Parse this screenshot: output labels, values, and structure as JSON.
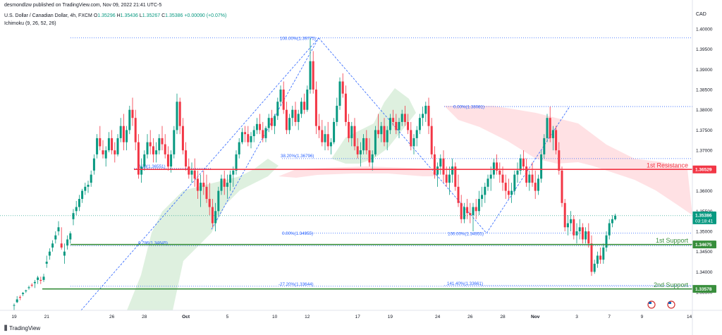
{
  "header": {
    "published": "desmondlzw published on TradingView.com, Nov 09, 2022 21:41 UTC-5",
    "symbol": "U.S. Dollar / Canadian Dollar, 4h, FXCM",
    "ohlc_o_label": "O",
    "ohlc_o": "1.35296",
    "ohlc_h_label": "H",
    "ohlc_h": "1.35436",
    "ohlc_l_label": "L",
    "ohlc_l": "1.35267",
    "ohlc_c_label": "C",
    "ohlc_c": "1.35386",
    "change": "+0.00090 (+0.07%)",
    "indicator": "Ichimoku (9, 26, 52, 26)"
  },
  "footer": {
    "brand": "TradingView",
    "brand_icon": "tradingview-logo-icon"
  },
  "colors": {
    "up": "#089981",
    "down": "#f23645",
    "resistance": "#f23645",
    "support": "#388e3c",
    "fib": "#2962ff",
    "cloud_green": "#a5d6a7",
    "cloud_red": "#ffcdd2",
    "price_label": "#089981"
  },
  "chart_data": {
    "type": "candlestick",
    "currency": "CAD",
    "ylim": [
      1.3305,
      1.4045
    ],
    "y_ticks": [
      1.4,
      1.395,
      1.39,
      1.385,
      1.38,
      1.375,
      1.37,
      1.365,
      1.36,
      1.355,
      1.35,
      1.345,
      1.34,
      1.335
    ],
    "y_tick_labels": [
      "1.40000",
      "1.39500",
      "1.39000",
      "1.38500",
      "1.38000",
      "1.37500",
      "1.37000",
      "1.36500",
      "1.36000",
      "1.35500",
      "1.35000",
      "1.34500",
      "1.34000",
      "1.33500"
    ],
    "x_tick_labels": [
      "19",
      "21",
      "26",
      "28",
      "Oct",
      "5",
      "10",
      "12",
      "17",
      "19",
      "24",
      "26",
      "28",
      "Nov",
      "3",
      "7",
      "9",
      "14"
    ],
    "x_tick_index": [
      0,
      11,
      33,
      44,
      58,
      72,
      88,
      99,
      116,
      127,
      143,
      154,
      165,
      176,
      190,
      201,
      212,
      228
    ],
    "candles": [
      [
        1.3318,
        1.3322,
        1.3303,
        1.3318
      ],
      [
        1.3325,
        1.334,
        1.3323,
        1.3332
      ],
      [
        1.3338,
        1.3342,
        1.333,
        1.3336
      ],
      [
        1.3345,
        1.335,
        1.334,
        1.3348
      ],
      [
        1.3352,
        1.3356,
        1.3348,
        1.3354
      ],
      [
        1.336,
        1.3366,
        1.3356,
        1.3362
      ],
      [
        1.3368,
        1.3372,
        1.3362,
        1.3366
      ],
      [
        1.3372,
        1.338,
        1.336,
        1.3375
      ],
      [
        1.338,
        1.339,
        1.337,
        1.3386
      ],
      [
        1.338,
        1.3388,
        1.337,
        1.3378
      ],
      [
        1.338,
        1.3395,
        1.3375,
        1.3388
      ],
      [
        1.342,
        1.344,
        1.341,
        1.3425
      ],
      [
        1.344,
        1.3458,
        1.343,
        1.345
      ],
      [
        1.346,
        1.3478,
        1.345,
        1.347
      ],
      [
        1.348,
        1.35,
        1.347,
        1.349
      ],
      [
        1.35,
        1.3525,
        1.349,
        1.351
      ],
      [
        1.347,
        1.351,
        1.3455,
        1.346
      ],
      [
        1.344,
        1.347,
        1.342,
        1.345
      ],
      [
        1.3465,
        1.349,
        1.3455,
        1.348
      ],
      [
        1.348,
        1.35,
        1.347,
        1.3495
      ],
      [
        1.353,
        1.3555,
        1.3515,
        1.3545
      ],
      [
        1.355,
        1.3575,
        1.354,
        1.356
      ],
      [
        1.356,
        1.359,
        1.355,
        1.358
      ],
      [
        1.358,
        1.3605,
        1.357,
        1.36
      ],
      [
        1.36,
        1.362,
        1.359,
        1.361
      ],
      [
        1.361,
        1.3625,
        1.3595,
        1.3615
      ],
      [
        1.362,
        1.365,
        1.361,
        1.364
      ],
      [
        1.365,
        1.369,
        1.364,
        1.368
      ],
      [
        1.369,
        1.374,
        1.368,
        1.373
      ],
      [
        1.373,
        1.376,
        1.37,
        1.371
      ],
      [
        1.37,
        1.3725,
        1.368,
        1.369
      ],
      [
        1.368,
        1.371,
        1.366,
        1.37
      ],
      [
        1.37,
        1.3745,
        1.3695,
        1.373
      ],
      [
        1.373,
        1.375,
        1.369,
        1.37
      ],
      [
        1.37,
        1.372,
        1.367,
        1.369
      ],
      [
        1.369,
        1.374,
        1.3685,
        1.373
      ],
      [
        1.373,
        1.378,
        1.372,
        1.376
      ],
      [
        1.376,
        1.379,
        1.37,
        1.372
      ],
      [
        1.372,
        1.376,
        1.37,
        1.375
      ],
      [
        1.375,
        1.381,
        1.374,
        1.38
      ],
      [
        1.38,
        1.383,
        1.376,
        1.378
      ],
      [
        1.378,
        1.38,
        1.37,
        1.372
      ],
      [
        1.372,
        1.374,
        1.363,
        1.364
      ],
      [
        1.364,
        1.368,
        1.362,
        1.366
      ],
      [
        1.366,
        1.37,
        1.365,
        1.369
      ],
      [
        1.369,
        1.374,
        1.368,
        1.372
      ],
      [
        1.372,
        1.375,
        1.369,
        1.371
      ],
      [
        1.371,
        1.373,
        1.367,
        1.369
      ],
      [
        1.369,
        1.372,
        1.367,
        1.37
      ],
      [
        1.37,
        1.374,
        1.369,
        1.373
      ],
      [
        1.373,
        1.376,
        1.37,
        1.3715
      ],
      [
        1.3715,
        1.374,
        1.368,
        1.369
      ],
      [
        1.369,
        1.371,
        1.365,
        1.366
      ],
      [
        1.366,
        1.37,
        1.3645,
        1.369
      ],
      [
        1.369,
        1.376,
        1.368,
        1.375
      ],
      [
        1.375,
        1.384,
        1.374,
        1.382
      ],
      [
        1.382,
        1.383,
        1.374,
        1.376
      ],
      [
        1.376,
        1.378,
        1.369,
        1.37
      ],
      [
        1.37,
        1.372,
        1.365,
        1.366
      ],
      [
        1.366,
        1.368,
        1.363,
        1.364
      ],
      [
        1.364,
        1.367,
        1.362,
        1.365
      ],
      [
        1.365,
        1.368,
        1.361,
        1.363
      ],
      [
        1.363,
        1.365,
        1.358,
        1.36
      ],
      [
        1.36,
        1.364,
        1.356,
        1.362
      ],
      [
        1.362,
        1.365,
        1.359,
        1.361
      ],
      [
        1.361,
        1.364,
        1.357,
        1.358
      ],
      [
        1.358,
        1.362,
        1.354,
        1.356
      ],
      [
        1.356,
        1.358,
        1.351,
        1.352
      ],
      [
        1.352,
        1.357,
        1.35,
        1.355
      ],
      [
        1.355,
        1.361,
        1.354,
        1.36
      ],
      [
        1.36,
        1.364,
        1.359,
        1.363
      ],
      [
        1.363,
        1.365,
        1.359,
        1.361
      ],
      [
        1.361,
        1.364,
        1.358,
        1.362
      ],
      [
        1.362,
        1.365,
        1.36,
        1.364
      ],
      [
        1.364,
        1.366,
        1.361,
        1.365
      ],
      [
        1.365,
        1.37,
        1.364,
        1.369
      ],
      [
        1.369,
        1.373,
        1.368,
        1.372
      ],
      [
        1.372,
        1.3755,
        1.3715,
        1.3745
      ],
      [
        1.3745,
        1.376,
        1.372,
        1.374
      ],
      [
        1.374,
        1.376,
        1.371,
        1.372
      ],
      [
        1.372,
        1.3745,
        1.3705,
        1.3735
      ],
      [
        1.3735,
        1.376,
        1.372,
        1.375
      ],
      [
        1.375,
        1.378,
        1.374,
        1.3765
      ],
      [
        1.3765,
        1.379,
        1.374,
        1.375
      ],
      [
        1.375,
        1.377,
        1.372,
        1.373
      ],
      [
        1.373,
        1.376,
        1.372,
        1.3755
      ],
      [
        1.3755,
        1.379,
        1.3745,
        1.378
      ],
      [
        1.378,
        1.38,
        1.375,
        1.376
      ],
      [
        1.376,
        1.379,
        1.374,
        1.3785
      ],
      [
        1.3785,
        1.383,
        1.3775,
        1.382
      ],
      [
        1.382,
        1.386,
        1.381,
        1.385
      ],
      [
        1.385,
        1.387,
        1.379,
        1.38
      ],
      [
        1.38,
        1.382,
        1.374,
        1.375
      ],
      [
        1.375,
        1.379,
        1.374,
        1.378
      ],
      [
        1.378,
        1.381,
        1.376,
        1.38
      ],
      [
        1.38,
        1.382,
        1.376,
        1.377
      ],
      [
        1.377,
        1.38,
        1.375,
        1.379
      ],
      [
        1.379,
        1.383,
        1.378,
        1.382
      ],
      [
        1.382,
        1.384,
        1.379,
        1.38
      ],
      [
        1.38,
        1.386,
        1.3795,
        1.385
      ],
      [
        1.385,
        1.3977,
        1.384,
        1.392
      ],
      [
        1.392,
        1.3945,
        1.384,
        1.385
      ],
      [
        1.385,
        1.387,
        1.374,
        1.376
      ],
      [
        1.376,
        1.379,
        1.373,
        1.375
      ],
      [
        1.375,
        1.3775,
        1.371,
        1.372
      ],
      [
        1.372,
        1.376,
        1.37,
        1.374
      ],
      [
        1.374,
        1.377,
        1.37,
        1.371
      ],
      [
        1.371,
        1.373,
        1.369,
        1.372
      ],
      [
        1.372,
        1.378,
        1.3715,
        1.377
      ],
      [
        1.377,
        1.383,
        1.376,
        1.381
      ],
      [
        1.381,
        1.388,
        1.38,
        1.387
      ],
      [
        1.387,
        1.389,
        1.383,
        1.384
      ],
      [
        1.384,
        1.386,
        1.376,
        1.377
      ],
      [
        1.377,
        1.379,
        1.372,
        1.373
      ],
      [
        1.373,
        1.377,
        1.371,
        1.376
      ],
      [
        1.376,
        1.378,
        1.37,
        1.371
      ],
      [
        1.371,
        1.373,
        1.368,
        1.369
      ],
      [
        1.369,
        1.372,
        1.366,
        1.37
      ],
      [
        1.37,
        1.374,
        1.369,
        1.373
      ],
      [
        1.373,
        1.375,
        1.369,
        1.37
      ],
      [
        1.37,
        1.373,
        1.366,
        1.367
      ],
      [
        1.367,
        1.37,
        1.365,
        1.369
      ],
      [
        1.369,
        1.376,
        1.3685,
        1.375
      ],
      [
        1.375,
        1.379,
        1.373,
        1.374
      ],
      [
        1.374,
        1.377,
        1.372,
        1.376
      ],
      [
        1.376,
        1.378,
        1.371,
        1.372
      ],
      [
        1.372,
        1.376,
        1.37,
        1.375
      ],
      [
        1.375,
        1.379,
        1.374,
        1.378
      ],
      [
        1.378,
        1.38,
        1.376,
        1.377
      ],
      [
        1.377,
        1.379,
        1.374,
        1.375
      ],
      [
        1.375,
        1.378,
        1.373,
        1.377
      ],
      [
        1.377,
        1.38,
        1.376,
        1.379
      ],
      [
        1.379,
        1.381,
        1.376,
        1.377
      ],
      [
        1.377,
        1.379,
        1.374,
        1.375
      ],
      [
        1.375,
        1.377,
        1.37,
        1.371
      ],
      [
        1.371,
        1.374,
        1.369,
        1.373
      ],
      [
        1.373,
        1.376,
        1.371,
        1.375
      ],
      [
        1.375,
        1.379,
        1.374,
        1.378
      ],
      [
        1.378,
        1.3808,
        1.376,
        1.379
      ],
      [
        1.379,
        1.382,
        1.377,
        1.381
      ],
      [
        1.381,
        1.383,
        1.374,
        1.376
      ],
      [
        1.376,
        1.378,
        1.368,
        1.369
      ],
      [
        1.369,
        1.371,
        1.363,
        1.364
      ],
      [
        1.364,
        1.367,
        1.361,
        1.366
      ],
      [
        1.366,
        1.369,
        1.364,
        1.368
      ],
      [
        1.368,
        1.37,
        1.362,
        1.364
      ],
      [
        1.364,
        1.366,
        1.361,
        1.362
      ],
      [
        1.362,
        1.366,
        1.359,
        1.364
      ],
      [
        1.364,
        1.368,
        1.362,
        1.366
      ],
      [
        1.366,
        1.367,
        1.36,
        1.361
      ],
      [
        1.361,
        1.364,
        1.356,
        1.357
      ],
      [
        1.357,
        1.359,
        1.352,
        1.353
      ],
      [
        1.353,
        1.357,
        1.352,
        1.356
      ],
      [
        1.356,
        1.358,
        1.353,
        1.3545
      ],
      [
        1.3545,
        1.357,
        1.352,
        1.354
      ],
      [
        1.354,
        1.357,
        1.35,
        1.356
      ],
      [
        1.356,
        1.358,
        1.353,
        1.355
      ],
      [
        1.355,
        1.36,
        1.354,
        1.358
      ],
      [
        1.358,
        1.361,
        1.356,
        1.359
      ],
      [
        1.359,
        1.362,
        1.357,
        1.361
      ],
      [
        1.361,
        1.364,
        1.36,
        1.363
      ],
      [
        1.363,
        1.366,
        1.36,
        1.364
      ],
      [
        1.364,
        1.368,
        1.363,
        1.367
      ],
      [
        1.367,
        1.369,
        1.364,
        1.365
      ],
      [
        1.365,
        1.367,
        1.362,
        1.364
      ],
      [
        1.364,
        1.366,
        1.36,
        1.362
      ],
      [
        1.362,
        1.364,
        1.358,
        1.36
      ],
      [
        1.36,
        1.363,
        1.358,
        1.359
      ],
      [
        1.359,
        1.362,
        1.357,
        1.36
      ],
      [
        1.36,
        1.365,
        1.359,
        1.364
      ],
      [
        1.364,
        1.367,
        1.362,
        1.365
      ],
      [
        1.365,
        1.369,
        1.364,
        1.368
      ],
      [
        1.368,
        1.37,
        1.365,
        1.366
      ],
      [
        1.366,
        1.368,
        1.361,
        1.362
      ],
      [
        1.362,
        1.365,
        1.36,
        1.364
      ],
      [
        1.364,
        1.367,
        1.361,
        1.362
      ],
      [
        1.362,
        1.365,
        1.358,
        1.36
      ],
      [
        1.36,
        1.364,
        1.359,
        1.363
      ],
      [
        1.363,
        1.37,
        1.362,
        1.369
      ],
      [
        1.369,
        1.374,
        1.368,
        1.373
      ],
      [
        1.373,
        1.379,
        1.372,
        1.378
      ],
      [
        1.378,
        1.3808,
        1.372,
        1.373
      ],
      [
        1.373,
        1.376,
        1.37,
        1.375
      ],
      [
        1.375,
        1.376,
        1.369,
        1.37
      ],
      [
        1.37,
        1.372,
        1.364,
        1.365
      ],
      [
        1.365,
        1.366,
        1.356,
        1.357
      ],
      [
        1.357,
        1.358,
        1.35,
        1.351
      ],
      [
        1.351,
        1.354,
        1.349,
        1.352
      ],
      [
        1.352,
        1.355,
        1.35,
        1.353
      ],
      [
        1.353,
        1.354,
        1.348,
        1.349
      ],
      [
        1.349,
        1.352,
        1.347,
        1.35
      ],
      [
        1.35,
        1.353,
        1.348,
        1.351
      ],
      [
        1.351,
        1.352,
        1.347,
        1.348
      ],
      [
        1.348,
        1.351,
        1.347,
        1.35
      ],
      [
        1.35,
        1.352,
        1.346,
        1.347
      ],
      [
        1.347,
        1.349,
        1.339,
        1.34
      ],
      [
        1.34,
        1.343,
        1.3395,
        1.342
      ],
      [
        1.342,
        1.345,
        1.341,
        1.344
      ],
      [
        1.344,
        1.346,
        1.342,
        1.343
      ],
      [
        1.343,
        1.347,
        1.342,
        1.346
      ],
      [
        1.346,
        1.35,
        1.345,
        1.349
      ],
      [
        1.349,
        1.353,
        1.348,
        1.352
      ],
      [
        1.352,
        1.354,
        1.351,
        1.353
      ],
      [
        1.35296,
        1.35436,
        1.35267,
        1.35386
      ]
    ],
    "levels": [
      {
        "label": "1st Resistance",
        "value": 1.36529,
        "value_label": "1.36529",
        "color": "#f23645"
      },
      {
        "label": "1st Support",
        "value": 1.34675,
        "value_label": "1.34675",
        "color": "#388e3c"
      },
      {
        "label": "2nd Support",
        "value": 1.33578,
        "value_label": "1.33578",
        "color": "#388e3c"
      }
    ],
    "fib_labels": [
      {
        "text": "100.00%(1.39775)",
        "value": 1.39775
      },
      {
        "text": "0.38(1.36551)",
        "value": 1.36551
      },
      {
        "text": "0.786(1.34645)",
        "value": 1.34645
      },
      {
        "text": "-27.20%(1.33644)",
        "value": 1.33644
      },
      {
        "text": "38.20%(1.36796)",
        "value": 1.36796
      },
      {
        "text": "0.00%(1.34955)",
        "value": 1.34955
      },
      {
        "text": "0.00%(1.38081)",
        "value": 1.38081
      },
      {
        "text": "100.00%(1.34955)",
        "value": 1.34955
      },
      {
        "text": "141.40%(1.33661)",
        "value": 1.33661
      }
    ],
    "current_price": {
      "value": 1.35386,
      "label": "1.35386",
      "countdown": "03:18:41"
    }
  }
}
